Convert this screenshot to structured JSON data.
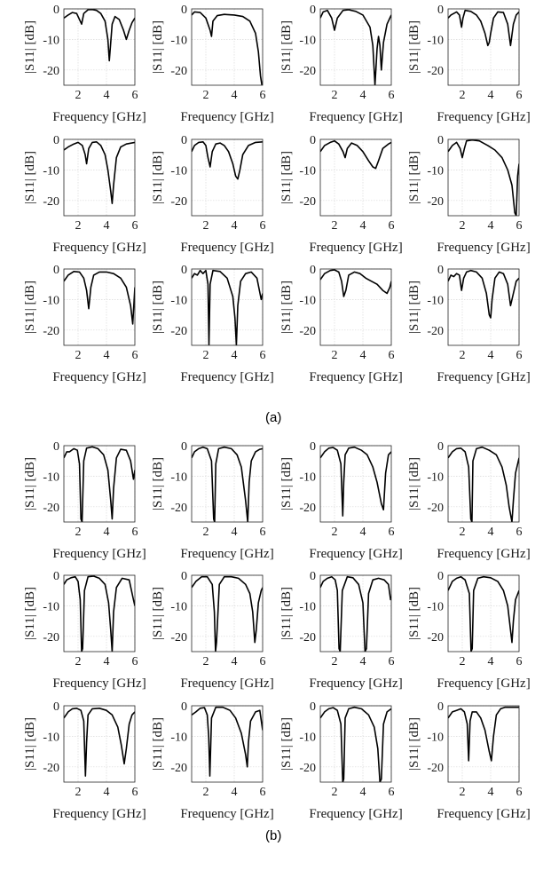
{
  "figure": {
    "captions": [
      "(a)",
      "(b)"
    ]
  },
  "axis_style": {
    "curve_color": "#000000",
    "grid_color": "#d9d9d9",
    "frame_color": "#262626"
  },
  "chart_data": [
    {
      "panel": "(a)",
      "type": "line",
      "grid": true,
      "xlabel": "Frequency [GHz]",
      "ylabel": "|S11| [dB]",
      "xlim": [
        1,
        6
      ],
      "ylim": [
        -25,
        0
      ],
      "xticks": [
        2,
        4,
        6
      ],
      "yticks": [
        0,
        -10,
        -20
      ],
      "subplots": [
        {
          "x": [
            1,
            1.3,
            1.6,
            1.9,
            2.1,
            2.25,
            2.4,
            2.7,
            3,
            3.3,
            3.6,
            3.9,
            4.1,
            4.2,
            4.3,
            4.4,
            4.6,
            4.9,
            5.2,
            5.4,
            5.6,
            5.8,
            6
          ],
          "y": [
            -3,
            -2,
            -1.2,
            -1.5,
            -3.5,
            -5,
            -1.5,
            -0.3,
            -0.2,
            -0.5,
            -1.5,
            -4,
            -10,
            -17,
            -11,
            -5,
            -2.5,
            -3.5,
            -7,
            -10,
            -7,
            -4.5,
            -3
          ]
        },
        {
          "x": [
            1,
            1.2,
            1.6,
            2,
            2.3,
            2.4,
            2.5,
            2.8,
            3.3,
            4,
            4.6,
            5.1,
            5.5,
            5.7,
            5.85,
            5.95,
            6
          ],
          "y": [
            -2,
            -1,
            -1.2,
            -3,
            -7,
            -9,
            -4,
            -2.2,
            -1.8,
            -2,
            -2.5,
            -4,
            -8,
            -14,
            -22,
            -25,
            -25
          ]
        },
        {
          "x": [
            1,
            1.2,
            1.5,
            1.8,
            2,
            2.2,
            2.6,
            3,
            3.5,
            4,
            4.5,
            4.7,
            4.85,
            5,
            5.1,
            5.2,
            5.3,
            5.45,
            5.7,
            6
          ],
          "y": [
            -3,
            -1,
            -0.5,
            -3,
            -7,
            -3,
            -0.5,
            -0.3,
            -0.8,
            -2,
            -6,
            -12,
            -25,
            -13,
            -9,
            -12,
            -20,
            -11,
            -5,
            -2
          ]
        },
        {
          "x": [
            1,
            1.2,
            1.4,
            1.6,
            1.8,
            1.95,
            2.05,
            2.2,
            2.6,
            3,
            3.3,
            3.6,
            3.8,
            3.9,
            4,
            4.2,
            4.5,
            4.9,
            5.2,
            5.4,
            5.6,
            5.8,
            6
          ],
          "y": [
            -3,
            -2,
            -1.5,
            -1,
            -2,
            -6,
            -3,
            -0.5,
            -0.8,
            -2,
            -4,
            -8,
            -12,
            -11,
            -8,
            -3,
            -1,
            -1.2,
            -5,
            -12,
            -5,
            -2,
            -1
          ]
        },
        {
          "x": [
            1,
            1.3,
            1.7,
            2,
            2.3,
            2.5,
            2.6,
            2.75,
            3,
            3.3,
            3.6,
            3.9,
            4.1,
            4.3,
            4.4,
            4.5,
            4.7,
            5,
            5.4,
            6
          ],
          "y": [
            -3.5,
            -2.5,
            -1.5,
            -1,
            -2,
            -5,
            -8,
            -3,
            -1,
            -0.8,
            -2,
            -5,
            -10,
            -17,
            -21,
            -15,
            -6,
            -2.5,
            -1.5,
            -1
          ]
        },
        {
          "x": [
            1,
            1.2,
            1.5,
            1.8,
            2,
            2.15,
            2.3,
            2.45,
            2.7,
            3,
            3.3,
            3.6,
            3.9,
            4.1,
            4.25,
            4.4,
            4.6,
            5,
            5.5,
            6
          ],
          "y": [
            -4,
            -2,
            -1,
            -0.8,
            -2,
            -6,
            -9,
            -4,
            -1.5,
            -1.2,
            -2,
            -4,
            -8,
            -12,
            -13,
            -10,
            -5,
            -2,
            -1,
            -0.8
          ]
        },
        {
          "x": [
            1,
            1.3,
            1.7,
            2,
            2.3,
            2.6,
            2.75,
            2.9,
            3.2,
            3.6,
            4,
            4.4,
            4.7,
            4.9,
            5.1,
            5.4,
            5.8,
            6
          ],
          "y": [
            -4,
            -2,
            -1,
            -0.5,
            -1.5,
            -4,
            -6,
            -3,
            -1.2,
            -2,
            -4,
            -7,
            -9,
            -9.5,
            -7,
            -3,
            -1.5,
            -1
          ]
        },
        {
          "x": [
            1,
            1.3,
            1.6,
            1.85,
            2,
            2.15,
            2.3,
            2.7,
            3.2,
            3.8,
            4.3,
            4.8,
            5.2,
            5.5,
            5.7,
            5.8,
            5.9,
            6
          ],
          "y": [
            -4,
            -2,
            -1,
            -3,
            -6,
            -3,
            -0.5,
            -0.2,
            -0.5,
            -2,
            -3.5,
            -6,
            -10,
            -15,
            -24,
            -25,
            -12,
            -8
          ]
        },
        {
          "x": [
            1,
            1.3,
            1.7,
            2.1,
            2.4,
            2.6,
            2.75,
            2.9,
            3.1,
            3.5,
            4,
            4.5,
            5,
            5.4,
            5.7,
            5.85,
            5.95,
            6
          ],
          "y": [
            -4,
            -2,
            -0.8,
            -1,
            -3,
            -7,
            -13,
            -6,
            -2,
            -1,
            -1,
            -1.5,
            -3,
            -6,
            -12,
            -18,
            -10,
            -6
          ]
        },
        {
          "x": [
            1,
            1.2,
            1.4,
            1.6,
            1.8,
            2,
            2.15,
            2.22,
            2.3,
            2.5,
            3,
            3.5,
            3.9,
            4.05,
            4.15,
            4.25,
            4.45,
            4.8,
            5.2,
            5.6,
            5.9,
            6
          ],
          "y": [
            -3,
            -1.5,
            -2,
            -0.5,
            -1.5,
            -0.5,
            -5,
            -25,
            -5,
            -0.5,
            -0.8,
            -3,
            -9,
            -16,
            -25,
            -12,
            -4,
            -1.5,
            -1,
            -3,
            -10,
            -8
          ]
        },
        {
          "x": [
            1,
            1.3,
            1.7,
            2,
            2.3,
            2.5,
            2.65,
            2.8,
            3,
            3.4,
            3.8,
            4.2,
            4.6,
            5,
            5.4,
            5.7,
            5.9,
            6
          ],
          "y": [
            -3.5,
            -1.5,
            -0.5,
            -0.3,
            -1,
            -4,
            -9,
            -7,
            -2,
            -1,
            -1.5,
            -3,
            -4,
            -5,
            -7,
            -8,
            -6,
            -4
          ]
        },
        {
          "x": [
            1,
            1.2,
            1.4,
            1.6,
            1.8,
            1.95,
            2.1,
            2.3,
            2.6,
            3,
            3.4,
            3.7,
            3.9,
            4,
            4.1,
            4.3,
            4.6,
            4.9,
            5.2,
            5.4,
            5.6,
            5.8,
            6
          ],
          "y": [
            -4,
            -2,
            -2.5,
            -1.5,
            -2,
            -7,
            -3,
            -1,
            -0.5,
            -1,
            -3,
            -8,
            -15,
            -16,
            -10,
            -3,
            -1,
            -1.5,
            -5,
            -12,
            -8,
            -4,
            -3
          ]
        }
      ]
    },
    {
      "panel": "(b)",
      "type": "line",
      "grid": true,
      "xlabel": "Frequency [GHz]",
      "ylabel": "|S11| [dB]",
      "xlim": [
        1,
        6
      ],
      "ylim": [
        -25,
        0
      ],
      "xticks": [
        2,
        4,
        6
      ],
      "yticks": [
        0,
        -10,
        -20
      ],
      "subplots": [
        {
          "x": [
            1,
            1.2,
            1.4,
            1.7,
            1.95,
            2.1,
            2.2,
            2.28,
            2.4,
            2.6,
            3,
            3.4,
            3.8,
            4.1,
            4.3,
            4.4,
            4.5,
            4.7,
            5,
            5.4,
            5.7,
            5.9,
            6
          ],
          "y": [
            -4,
            -2,
            -2,
            -1,
            -1.5,
            -6,
            -24,
            -25,
            -5,
            -0.8,
            -0.4,
            -1,
            -3,
            -8,
            -18,
            -24,
            -14,
            -4,
            -1.2,
            -1.5,
            -5,
            -11,
            -8
          ]
        },
        {
          "x": [
            1,
            1.2,
            1.5,
            1.8,
            2.1,
            2.4,
            2.55,
            2.62,
            2.7,
            2.9,
            3.3,
            3.8,
            4.2,
            4.5,
            4.8,
            4.95,
            5.05,
            5.2,
            5.5,
            5.8,
            6
          ],
          "y": [
            -4,
            -2,
            -1,
            -0.5,
            -1,
            -5,
            -24,
            -25,
            -6,
            -1,
            -0.5,
            -1,
            -3,
            -7,
            -18,
            -25,
            -12,
            -5,
            -2,
            -1.2,
            -1
          ]
        },
        {
          "x": [
            1,
            1.3,
            1.6,
            1.9,
            2.2,
            2.45,
            2.58,
            2.65,
            2.75,
            3,
            3.4,
            3.9,
            4.3,
            4.7,
            5,
            5.3,
            5.45,
            5.6,
            5.8,
            6
          ],
          "y": [
            -4,
            -2,
            -0.8,
            -0.6,
            -1.5,
            -6,
            -23,
            -12,
            -3,
            -0.8,
            -0.5,
            -1.5,
            -3,
            -7,
            -12,
            -19,
            -21,
            -9,
            -3,
            -2
          ]
        },
        {
          "x": [
            1,
            1.3,
            1.6,
            1.9,
            2.2,
            2.45,
            2.6,
            2.68,
            2.75,
            3,
            3.4,
            3.9,
            4.4,
            4.8,
            5.1,
            5.3,
            5.5,
            5.6,
            5.75,
            6
          ],
          "y": [
            -4,
            -2,
            -1,
            -0.8,
            -2,
            -7,
            -24,
            -25,
            -5,
            -1,
            -0.5,
            -1.5,
            -3,
            -7,
            -13,
            -20,
            -25,
            -18,
            -9,
            -4
          ]
        },
        {
          "x": [
            1,
            1.2,
            1.5,
            1.8,
            2,
            2.15,
            2.25,
            2.32,
            2.45,
            2.7,
            3.1,
            3.5,
            3.9,
            4.15,
            4.3,
            4.4,
            4.5,
            4.7,
            5.1,
            5.6,
            5.9,
            6
          ],
          "y": [
            -3,
            -1.5,
            -0.8,
            -0.5,
            -2,
            -8,
            -25,
            -24,
            -5,
            -0.5,
            -0.3,
            -1,
            -3,
            -9,
            -18,
            -25,
            -12,
            -4,
            -1,
            -1.5,
            -8,
            -10
          ]
        },
        {
          "x": [
            1,
            1.3,
            1.7,
            2.1,
            2.45,
            2.6,
            2.68,
            2.75,
            2.95,
            3.3,
            3.8,
            4.3,
            4.8,
            5.1,
            5.3,
            5.45,
            5.55,
            5.7,
            5.9,
            6
          ],
          "y": [
            -4,
            -2,
            -0.5,
            -0.5,
            -3,
            -12,
            -25,
            -22,
            -3,
            -0.5,
            -0.5,
            -1,
            -3,
            -6,
            -12,
            -22,
            -18,
            -9,
            -5,
            -4
          ]
        },
        {
          "x": [
            1,
            1.2,
            1.5,
            1.8,
            2.05,
            2.2,
            2.32,
            2.4,
            2.55,
            2.9,
            3.3,
            3.7,
            4,
            4.15,
            4.25,
            4.4,
            4.7,
            5.1,
            5.5,
            5.8,
            5.95,
            6
          ],
          "y": [
            -4,
            -2,
            -1,
            -0.5,
            -1.5,
            -5,
            -24,
            -25,
            -5,
            -0.5,
            -0.8,
            -3,
            -9,
            -25,
            -24,
            -6,
            -1.5,
            -1,
            -1.5,
            -3,
            -8,
            -7
          ]
        },
        {
          "x": [
            1,
            1.3,
            1.6,
            1.9,
            2.2,
            2.5,
            2.62,
            2.7,
            2.8,
            3.1,
            3.5,
            4,
            4.5,
            4.9,
            5.2,
            5.4,
            5.5,
            5.6,
            5.75,
            6
          ],
          "y": [
            -5,
            -2,
            -1,
            -0.5,
            -1.5,
            -6,
            -25,
            -24,
            -5,
            -1,
            -0.5,
            -0.8,
            -2,
            -5,
            -10,
            -18,
            -22,
            -15,
            -8,
            -5
          ]
        },
        {
          "x": [
            1,
            1.3,
            1.6,
            1.9,
            2.2,
            2.4,
            2.52,
            2.6,
            2.7,
            3,
            3.5,
            4,
            4.4,
            4.8,
            5.05,
            5.25,
            5.4,
            5.6,
            5.8,
            6
          ],
          "y": [
            -4,
            -2,
            -1,
            -0.8,
            -1.5,
            -5,
            -23,
            -12,
            -3,
            -1,
            -0.8,
            -1.5,
            -3,
            -7,
            -13,
            -19,
            -14,
            -6,
            -3,
            -2
          ]
        },
        {
          "x": [
            1,
            1.3,
            1.6,
            1.9,
            2.1,
            2.2,
            2.28,
            2.4,
            2.7,
            3.2,
            3.7,
            4.1,
            4.5,
            4.8,
            4.92,
            5,
            5.15,
            5.5,
            5.8,
            6
          ],
          "y": [
            -3,
            -2,
            -0.8,
            -0.6,
            -3,
            -10,
            -23,
            -4,
            -0.5,
            -0.5,
            -1.5,
            -4,
            -9,
            -16,
            -20,
            -12,
            -5,
            -2,
            -1.5,
            -8
          ]
        },
        {
          "x": [
            1,
            1.3,
            1.6,
            1.9,
            2.2,
            2.45,
            2.58,
            2.65,
            2.75,
            3,
            3.4,
            3.9,
            4.4,
            4.8,
            5.05,
            5.2,
            5.3,
            5.45,
            5.7,
            6
          ],
          "y": [
            -4,
            -2,
            -1,
            -0.6,
            -1.5,
            -6,
            -25,
            -24,
            -4,
            -1,
            -0.5,
            -1,
            -3,
            -7,
            -14,
            -25,
            -24,
            -6,
            -2,
            -1
          ]
        },
        {
          "x": [
            1,
            1.3,
            1.6,
            1.9,
            2.15,
            2.35,
            2.45,
            2.55,
            2.7,
            3,
            3.3,
            3.6,
            3.9,
            4.05,
            4.2,
            4.4,
            4.7,
            5,
            5.5,
            6
          ],
          "y": [
            -4,
            -2,
            -1.5,
            -1,
            -2,
            -6,
            -18,
            -5,
            -2,
            -2,
            -4,
            -8,
            -15,
            -18,
            -10,
            -3,
            -1,
            -0.5,
            -0.5,
            -0.5
          ]
        }
      ]
    }
  ]
}
